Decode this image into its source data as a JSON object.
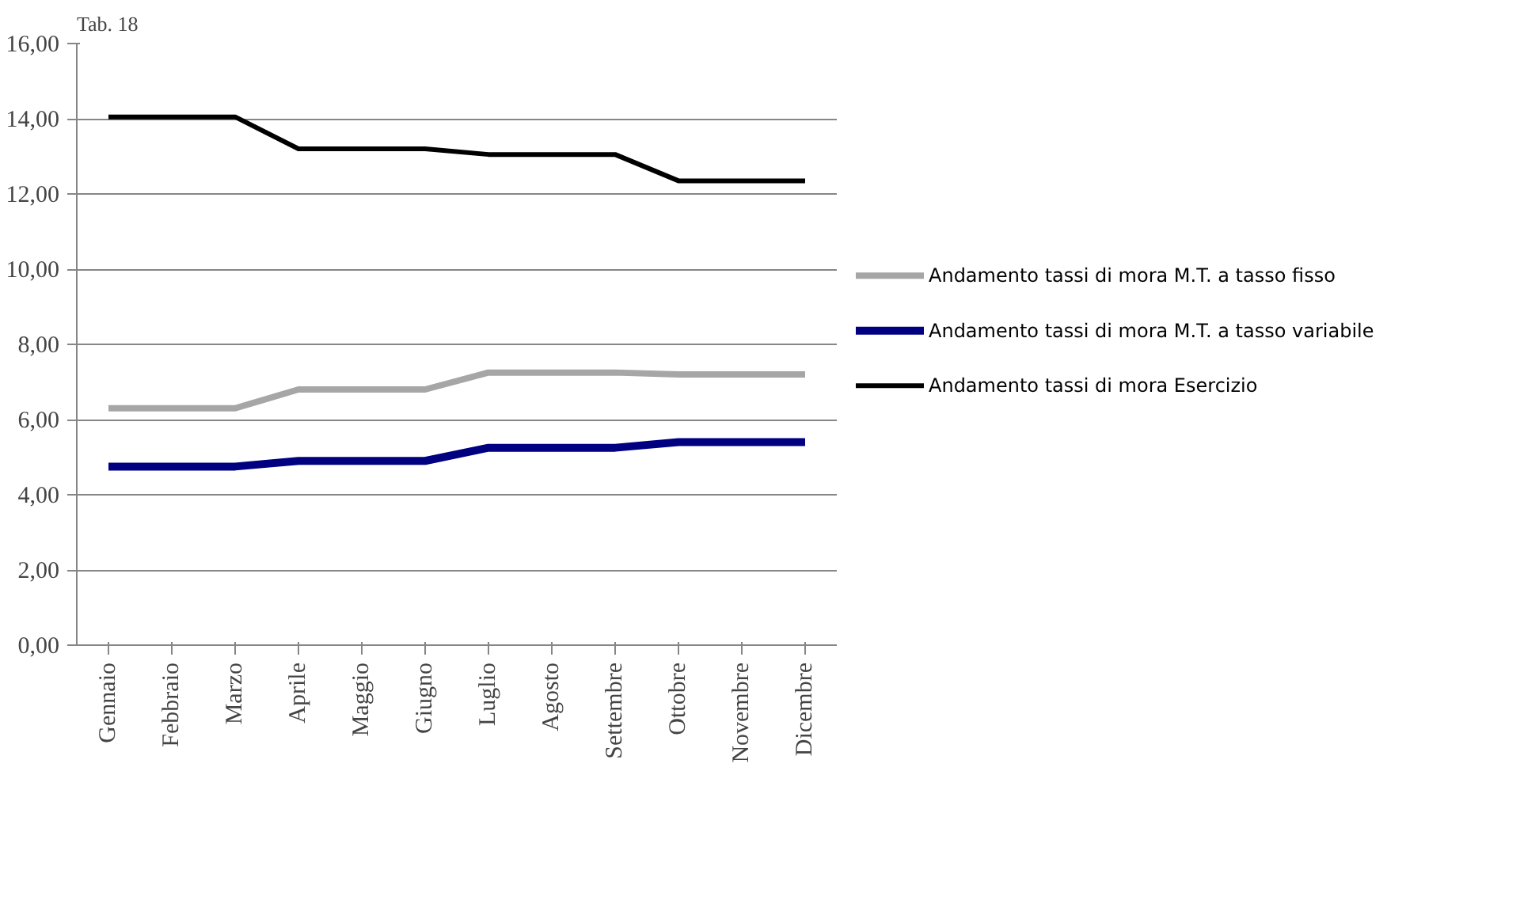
{
  "chart_data": {
    "type": "line",
    "title": "Tab. 18",
    "categories": [
      "Gennaio",
      "Febbraio",
      "Marzo",
      "Aprile",
      "Maggio",
      "Giugno",
      "Luglio",
      "Agosto",
      "Settembre",
      "Ottobre",
      "Novembre",
      "Dicembre"
    ],
    "series": [
      {
        "name": "Andamento tassi di mora M.T. a tasso fisso",
        "color": "#a6a6a6",
        "values": [
          6.3,
          6.3,
          6.3,
          6.8,
          6.8,
          6.8,
          7.25,
          7.25,
          7.25,
          7.2,
          7.2,
          7.2
        ]
      },
      {
        "name": "Andamento tassi di mora M.T. a tasso variabile",
        "color": "#000080",
        "values": [
          4.75,
          4.75,
          4.75,
          4.9,
          4.9,
          4.9,
          5.25,
          5.25,
          5.25,
          5.4,
          5.4,
          5.4
        ]
      },
      {
        "name": "Andamento tassi di mora Esercizio",
        "color": "#000000",
        "values": [
          14.05,
          14.05,
          14.05,
          13.2,
          13.2,
          13.2,
          13.05,
          13.05,
          13.05,
          12.35,
          12.35,
          12.35
        ]
      }
    ],
    "ylim": [
      0,
      16
    ],
    "yticks": [
      {
        "value": 0,
        "label": "0,00"
      },
      {
        "value": 2,
        "label": "2,00"
      },
      {
        "value": 4,
        "label": "4,00"
      },
      {
        "value": 6,
        "label": "6,00"
      },
      {
        "value": 8,
        "label": "8,00"
      },
      {
        "value": 10,
        "label": "10,00"
      },
      {
        "value": 12,
        "label": "12,00"
      },
      {
        "value": 14,
        "label": "14,00"
      },
      {
        "value": 16,
        "label": "16,00"
      }
    ],
    "grid": "y",
    "legend": "right",
    "marker": "none",
    "line_style": "solid"
  }
}
